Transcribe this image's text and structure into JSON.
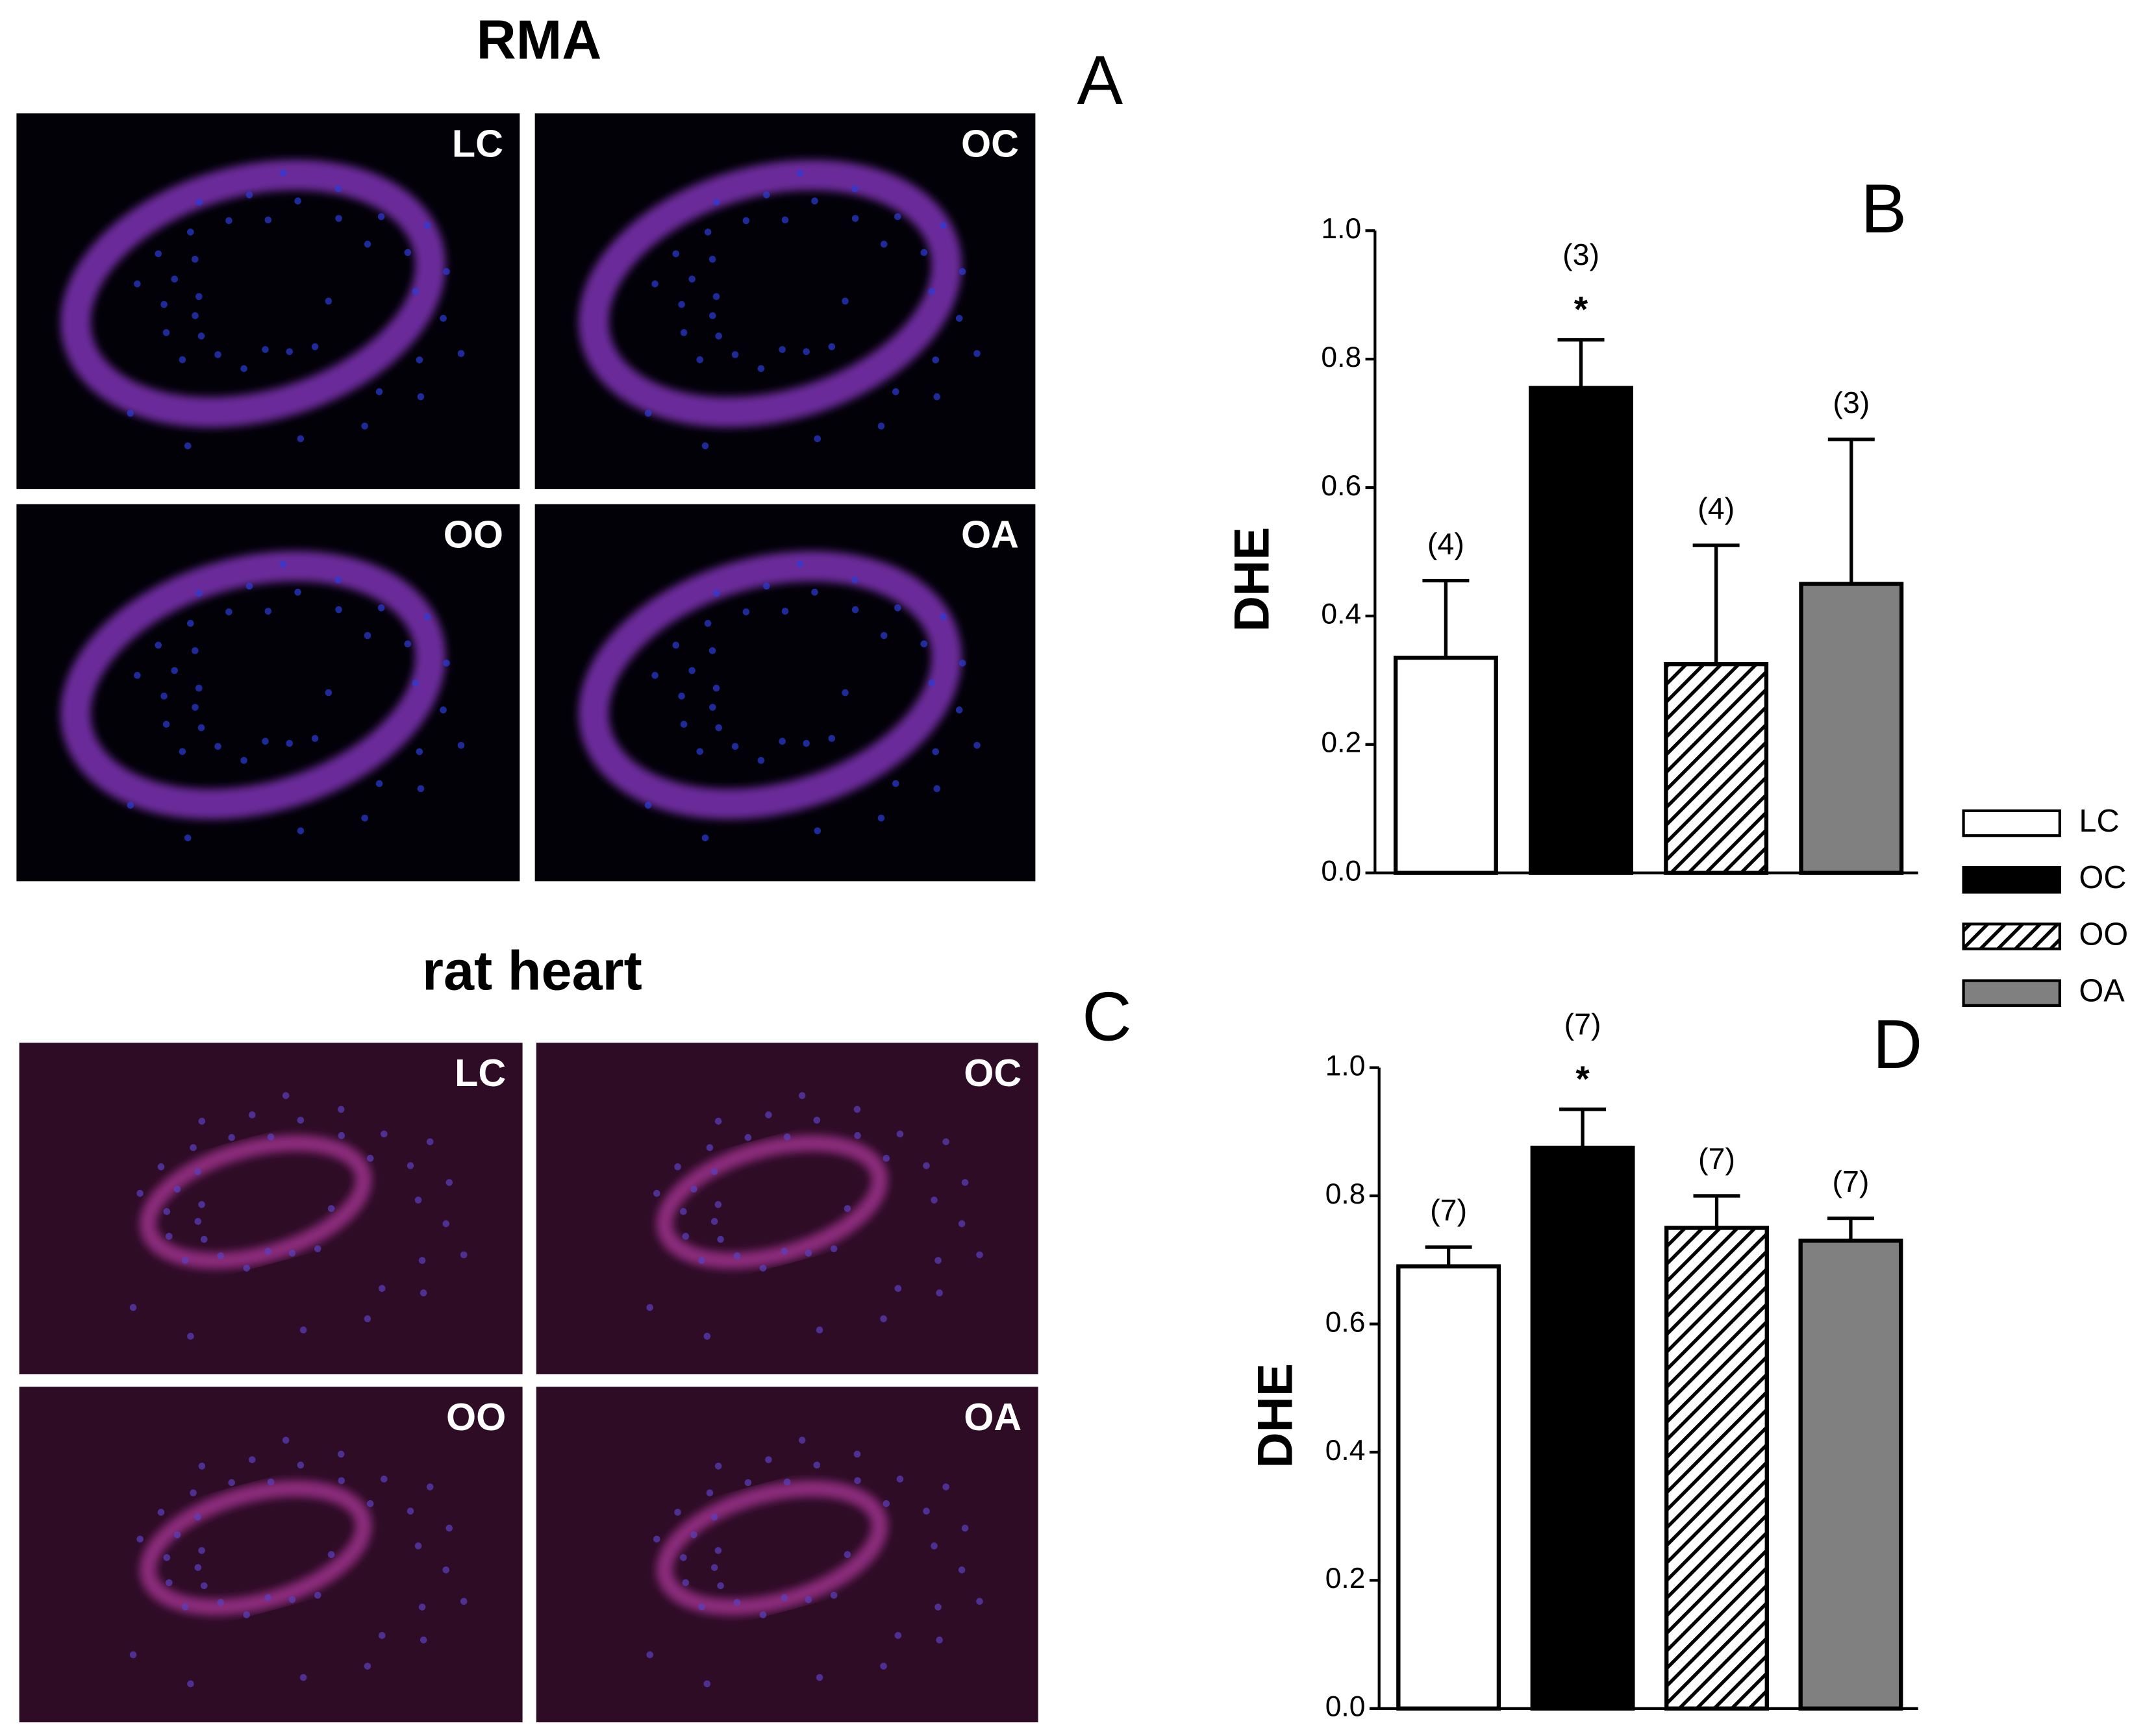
{
  "figure": {
    "panels": [
      {
        "title": "RMA",
        "letter": "A",
        "image_labels": [
          "LC",
          "OC",
          "OO",
          "OA"
        ]
      },
      {
        "title": "rat heart",
        "letter": "C",
        "image_labels": [
          "LC",
          "OC",
          "OO",
          "OA"
        ]
      }
    ]
  },
  "chart_data": [
    {
      "type": "bar",
      "letter": "B",
      "ylabel": "DHE",
      "categories": [
        "LC",
        "OC",
        "OO",
        "OA"
      ],
      "values": [
        0.335,
        0.755,
        0.325,
        0.45
      ],
      "errors": [
        0.12,
        0.075,
        0.185,
        0.225
      ],
      "n_labels": [
        "(4)",
        "(3)",
        "(4)",
        "(3)"
      ],
      "significance": [
        null,
        "*",
        null,
        null
      ],
      "colors": [
        "#ffffff",
        "#000000",
        "#ffffff",
        "#808080"
      ],
      "patterns": [
        null,
        null,
        "diagonal",
        null
      ],
      "ylim": [
        0,
        1
      ],
      "yticks": [
        {
          "value": 0,
          "label": "0.0"
        },
        {
          "value": 0.2,
          "label": "0.2"
        },
        {
          "value": 0.4,
          "label": "0.4"
        },
        {
          "value": 0.6,
          "label": "0.6"
        },
        {
          "value": 0.8,
          "label": "0.8"
        },
        {
          "value": 1,
          "label": "1.0"
        }
      ],
      "legend": "right"
    },
    {
      "type": "bar",
      "letter": "D",
      "ylabel": "DHE",
      "categories": [
        "LC",
        "OC",
        "OO",
        "OA"
      ],
      "values": [
        0.69,
        0.875,
        0.75,
        0.73
      ],
      "errors": [
        0.03,
        0.06,
        0.05,
        0.035
      ],
      "n_labels": [
        "(7)",
        "(7)",
        "(7)",
        "(7)"
      ],
      "significance": [
        null,
        "*",
        null,
        null
      ],
      "colors": [
        "#ffffff",
        "#000000",
        "#ffffff",
        "#808080"
      ],
      "patterns": [
        null,
        null,
        "diagonal",
        null
      ],
      "ylim": [
        0,
        1
      ],
      "yticks": [
        {
          "value": 0,
          "label": "0.0"
        },
        {
          "value": 0.2,
          "label": "0.2"
        },
        {
          "value": 0.4,
          "label": "0.4"
        },
        {
          "value": 0.6,
          "label": "0.6"
        },
        {
          "value": 0.8,
          "label": "0.8"
        },
        {
          "value": 1,
          "label": "1.0"
        }
      ]
    }
  ]
}
